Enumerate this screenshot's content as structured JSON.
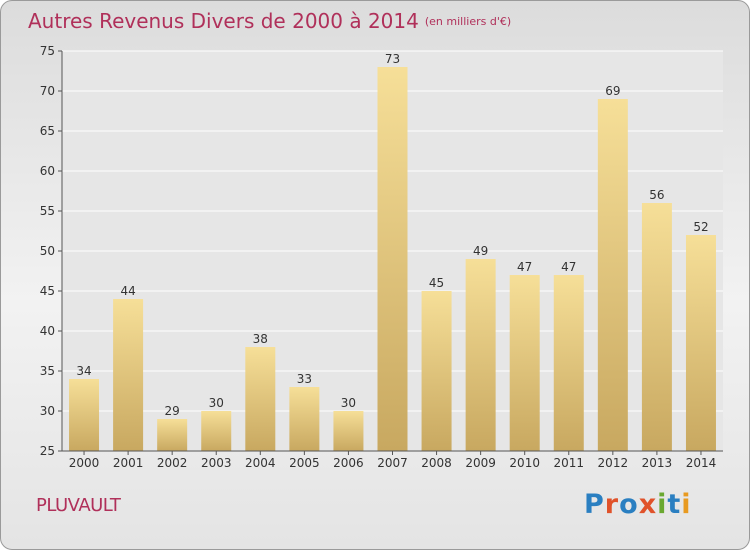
{
  "title": "Autres Revenus Divers de 2000 à 2014",
  "subtitle": "(en milliers d'€)",
  "place_label": "PLUVAULT",
  "logo_text": "Proxiti",
  "colors": {
    "title": "#b0305a",
    "bar_light": "#f6df98",
    "bar_dark": "#c8a860",
    "axis": "#555555",
    "grid": "#ffffff"
  },
  "chart_data": {
    "type": "bar",
    "title": "Autres Revenus Divers de 2000 à 2014",
    "subtitle": "(en milliers d'€)",
    "xlabel": "",
    "ylabel": "",
    "categories": [
      "2000",
      "2001",
      "2002",
      "2003",
      "2004",
      "2005",
      "2006",
      "2007",
      "2008",
      "2009",
      "2010",
      "2011",
      "2012",
      "2013",
      "2014"
    ],
    "values": [
      34,
      44,
      29,
      30,
      38,
      33,
      30,
      73,
      45,
      49,
      47,
      47,
      69,
      56,
      52
    ],
    "ylim": [
      25,
      75
    ],
    "yticks": [
      25,
      30,
      35,
      40,
      45,
      50,
      55,
      60,
      65,
      70,
      75
    ],
    "grid": true,
    "data_labels": true
  }
}
